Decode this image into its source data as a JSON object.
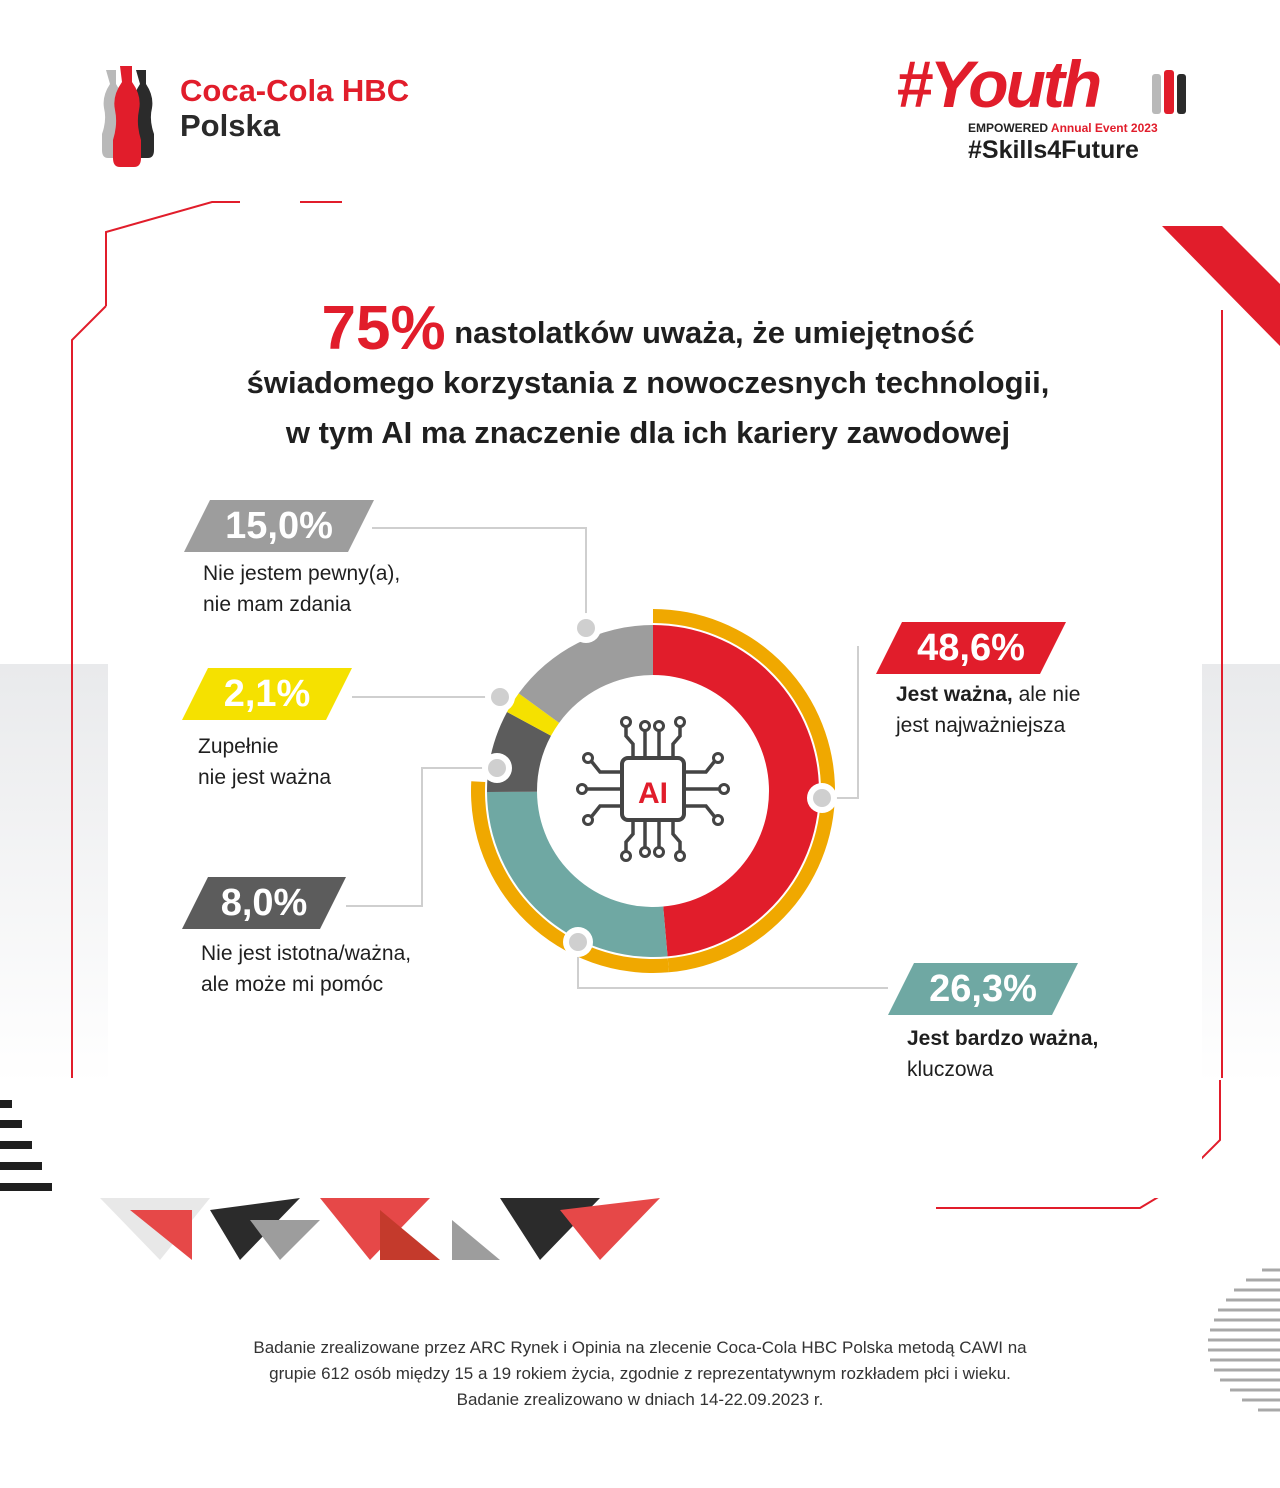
{
  "brand": {
    "line1": "Coca-Cola HBC",
    "line2": "Polska"
  },
  "event": {
    "word": "#Youth",
    "empowered": "EMPOWERED",
    "annual": "Annual Event 2023",
    "hashtag": "#Skills4Future"
  },
  "headline": {
    "highlight": "75%",
    "line1_rest": "nastolatków uważa, że umiejętność",
    "line2": "świadomego korzystania z nowoczesnych technologii,",
    "line3": "w tym AI ma znaczenie dla ich kariery zawodowej"
  },
  "center_icon_label": "AI",
  "colors": {
    "red": "#e11d2b",
    "teal": "#6fa8a3",
    "dark_gray": "#5c5c5c",
    "yellow": "#f5e100",
    "light_gray": "#9d9d9d",
    "ring": "#f0a800"
  },
  "chart_data": {
    "type": "pie",
    "slices": [
      {
        "value": 48.6,
        "label": "48,6%",
        "text_bold": "Jest ważna,",
        "text": " ale nie",
        "text2": "jest najważniejsza",
        "color": "#e11d2b"
      },
      {
        "value": 26.3,
        "label": "26,3%",
        "text_bold": "Jest bardzo ważna,",
        "text2": "kluczowa",
        "color": "#6fa8a3"
      },
      {
        "value": 8.0,
        "label": "8,0%",
        "text": "Nie jest istotna/ważna,",
        "text2": "ale może mi pomóc",
        "color": "#5c5c5c"
      },
      {
        "value": 2.1,
        "label": "2,1%",
        "text": "Zupełnie",
        "text2": "nie jest ważna",
        "color": "#f5e100"
      },
      {
        "value": 15.0,
        "label": "15,0%",
        "text": "Nie jestem pewny(a),",
        "text2": "nie mam zdania",
        "color": "#9d9d9d"
      }
    ]
  },
  "footnote": {
    "line1": "Badanie zrealizowane przez ARC Rynek i Opinia na zlecenie Coca-Cola HBC Polska metodą CAWI na",
    "line2": "grupie 612 osób między 15 a 19 rokiem życia, zgodnie z reprezentatywnym rozkładem płci i wieku.",
    "line3": "Badanie zrealizowano w dniach 14-22.09.2023 r."
  }
}
